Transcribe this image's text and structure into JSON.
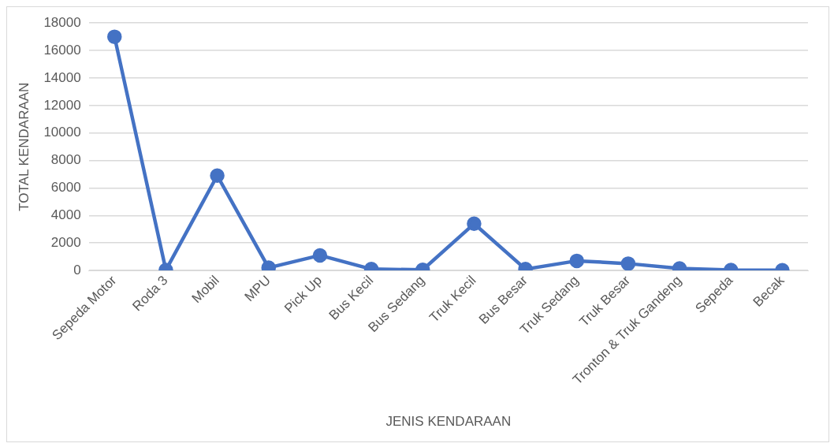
{
  "chart_data": {
    "type": "line",
    "xlabel": "JENIS KENDARAAN",
    "ylabel": "TOTAL KENDARAAN",
    "categories": [
      "Sepeda Motor",
      "Roda 3",
      "Mobil",
      "MPU",
      "Pick Up",
      "Bus Kecil",
      "Bus Sedang",
      "Truk Kecil",
      "Bus Besar",
      "Truk Sedang",
      "Truk Besar",
      "Tronton & Truk Gandeng",
      "Sepeda",
      "Becak"
    ],
    "series": [
      {
        "color": "#4472c4",
        "values": [
          17000,
          30,
          6900,
          200,
          1100,
          100,
          50,
          3400,
          100,
          700,
          500,
          150,
          30,
          20
        ]
      }
    ],
    "ylim": [
      0,
      18000
    ],
    "yticks": [
      0,
      2000,
      4000,
      6000,
      8000,
      10000,
      12000,
      14000,
      16000,
      18000
    ],
    "grid": "y",
    "legend": false,
    "marker": "circle",
    "line_style": "solid"
  }
}
